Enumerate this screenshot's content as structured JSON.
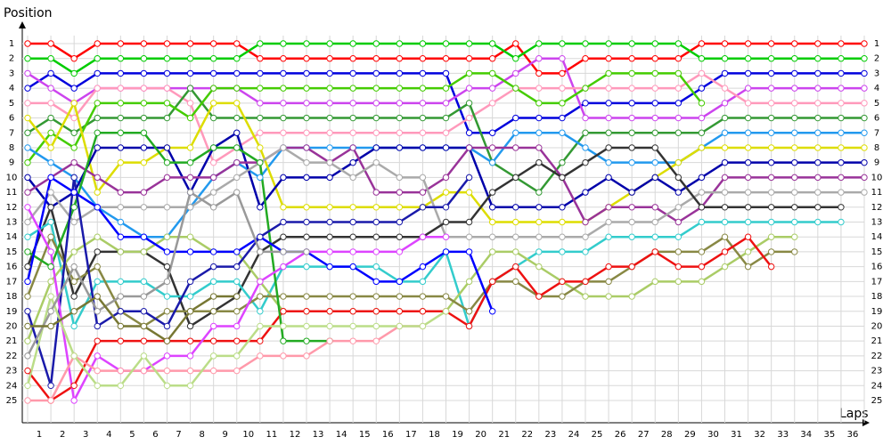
{
  "chart_data": {
    "type": "line",
    "ylabel": "Position",
    "xlabel": "Laps",
    "yreverse": true,
    "grid": true,
    "markers": true,
    "x": [
      0,
      1,
      2,
      3,
      4,
      5,
      6,
      7,
      8,
      9,
      10,
      11,
      12,
      13,
      14,
      15,
      16,
      17,
      18,
      19,
      20,
      21,
      22,
      23,
      24,
      25,
      26,
      27,
      28,
      29,
      30,
      31,
      32,
      33,
      34,
      35,
      36
    ],
    "xlim": [
      0,
      36
    ],
    "xticks": [
      {
        "value": 0.5,
        "label": "1"
      },
      {
        "value": 1.5,
        "label": "2"
      },
      {
        "value": 2.5,
        "label": "3"
      },
      {
        "value": 3.5,
        "label": "4"
      },
      {
        "value": 4.5,
        "label": "5"
      },
      {
        "value": 5.5,
        "label": "6"
      },
      {
        "value": 6.5,
        "label": "7"
      },
      {
        "value": 7.5,
        "label": "8"
      },
      {
        "value": 8.5,
        "label": "9"
      },
      {
        "value": 9.5,
        "label": "10"
      },
      {
        "value": 10.5,
        "label": "11"
      },
      {
        "value": 11.5,
        "label": "12"
      },
      {
        "value": 12.5,
        "label": "13"
      },
      {
        "value": 13.5,
        "label": "14"
      },
      {
        "value": 14.5,
        "label": "15"
      },
      {
        "value": 15.5,
        "label": "16"
      },
      {
        "value": 16.5,
        "label": "17"
      },
      {
        "value": 17.5,
        "label": "18"
      },
      {
        "value": 18.5,
        "label": "19"
      },
      {
        "value": 19.5,
        "label": "20"
      },
      {
        "value": 20.5,
        "label": "21"
      },
      {
        "value": 21.5,
        "label": "22"
      },
      {
        "value": 22.5,
        "label": "23"
      },
      {
        "value": 23.5,
        "label": "24"
      },
      {
        "value": 24.5,
        "label": "25"
      },
      {
        "value": 25.5,
        "label": "26"
      },
      {
        "value": 26.5,
        "label": "27"
      },
      {
        "value": 27.5,
        "label": "28"
      },
      {
        "value": 28.5,
        "label": "29"
      },
      {
        "value": 29.5,
        "label": "30"
      },
      {
        "value": 30.5,
        "label": "31"
      },
      {
        "value": 31.5,
        "label": "32"
      },
      {
        "value": 32.5,
        "label": "33"
      },
      {
        "value": 33.5,
        "label": "34"
      },
      {
        "value": 34.5,
        "label": "35"
      },
      {
        "value": 35.5,
        "label": "36"
      }
    ],
    "ylim": [
      1,
      25
    ],
    "yticks": [
      1,
      2,
      3,
      4,
      5,
      6,
      7,
      8,
      9,
      10,
      11,
      12,
      13,
      14,
      15,
      16,
      17,
      18,
      19,
      20,
      21,
      22,
      23,
      24,
      25
    ],
    "series": [
      {
        "color": "#ff0000",
        "values": [
          1,
          1,
          2,
          1,
          1,
          1,
          1,
          1,
          1,
          1,
          2,
          2,
          2,
          2,
          2,
          2,
          2,
          2,
          2,
          2,
          2,
          1,
          3,
          3,
          2,
          2,
          2,
          2,
          2,
          1,
          1,
          1,
          1,
          1,
          1,
          1,
          1
        ]
      },
      {
        "color": "#00cc00",
        "values": [
          2,
          2,
          3,
          2,
          2,
          2,
          2,
          2,
          2,
          2,
          1,
          1,
          1,
          1,
          1,
          1,
          1,
          1,
          1,
          1,
          1,
          2,
          1,
          1,
          1,
          1,
          1,
          1,
          1,
          2,
          2,
          2,
          2,
          2,
          2,
          2,
          2
        ]
      },
      {
        "color": "#0000dd",
        "values": [
          4,
          3,
          4,
          3,
          3,
          3,
          3,
          3,
          3,
          3,
          3,
          3,
          3,
          3,
          3,
          3,
          3,
          3,
          3,
          7,
          7,
          6,
          6,
          6,
          5,
          5,
          5,
          5,
          5,
          4,
          3,
          3,
          3,
          3,
          3,
          3,
          3
        ]
      },
      {
        "color": "#cc44ee",
        "values": [
          3,
          4,
          5,
          4,
          4,
          4,
          4,
          4,
          4,
          4,
          5,
          5,
          5,
          5,
          5,
          5,
          5,
          5,
          5,
          4,
          4,
          3,
          2,
          2,
          6,
          6,
          6,
          6,
          6,
          6,
          5,
          4,
          4,
          4,
          4,
          4,
          4
        ]
      },
      {
        "color": "#ff99bb",
        "values": [
          5,
          5,
          6,
          4,
          4,
          4,
          4,
          5,
          9,
          8,
          7,
          7,
          7,
          7,
          7,
          7,
          7,
          7,
          7,
          6,
          5,
          4,
          4,
          4,
          4,
          4,
          4,
          4,
          4,
          3,
          4,
          5,
          5,
          5,
          5,
          5,
          5
        ]
      },
      {
        "color": "#339933",
        "values": [
          7,
          6,
          7,
          6,
          6,
          6,
          6,
          4,
          6,
          6,
          6,
          6,
          6,
          6,
          6,
          6,
          6,
          6,
          6,
          5,
          9,
          10,
          11,
          9,
          7,
          7,
          7,
          7,
          7,
          7,
          6,
          6,
          6,
          6,
          6,
          6,
          6
        ]
      },
      {
        "color": "#44cc00",
        "values": [
          9,
          7,
          8,
          5,
          5,
          5,
          5,
          6,
          4,
          4,
          4,
          4,
          4,
          4,
          4,
          4,
          4,
          4,
          4,
          3,
          3,
          4,
          5,
          5,
          4,
          3,
          3,
          3,
          3,
          5,
          null,
          null,
          null,
          null,
          null,
          null,
          null
        ]
      },
      {
        "color": "#2299ee",
        "values": [
          8,
          9,
          10,
          12,
          13,
          14,
          14,
          12,
          10,
          9,
          10,
          8,
          8,
          8,
          8,
          8,
          8,
          8,
          8,
          8,
          9,
          7,
          7,
          7,
          8,
          9,
          9,
          9,
          9,
          8,
          7,
          7,
          7,
          7,
          7,
          7,
          7
        ]
      },
      {
        "color": "#dddd00",
        "values": [
          6,
          8,
          5,
          11,
          9,
          9,
          8,
          8,
          5,
          5,
          8,
          12,
          12,
          12,
          12,
          12,
          12,
          12,
          11,
          11,
          13,
          13,
          13,
          13,
          13,
          12,
          11,
          10,
          9,
          8,
          8,
          8,
          8,
          8,
          8,
          8,
          8
        ]
      },
      {
        "color": "#0000aa",
        "values": [
          10,
          12,
          11,
          8,
          8,
          8,
          8,
          11,
          8,
          7,
          12,
          10,
          10,
          10,
          9,
          8,
          8,
          8,
          8,
          8,
          12,
          12,
          12,
          12,
          11,
          10,
          11,
          10,
          11,
          10,
          9,
          9,
          9,
          9,
          9,
          9,
          9
        ]
      },
      {
        "color": "#993399",
        "values": [
          11,
          10,
          9,
          10,
          11,
          11,
          10,
          10,
          10,
          9,
          9,
          8,
          8,
          9,
          8,
          11,
          11,
          11,
          10,
          8,
          8,
          8,
          8,
          10,
          13,
          12,
          12,
          12,
          13,
          12,
          10,
          10,
          10,
          10,
          10,
          10,
          10
        ]
      },
      {
        "color": "#aaaaaa",
        "values": [
          13,
          11,
          13,
          12,
          12,
          12,
          12,
          12,
          11,
          10,
          9,
          8,
          9,
          9,
          10,
          9,
          10,
          10,
          14,
          14,
          14,
          14,
          14,
          14,
          14,
          13,
          13,
          13,
          12,
          11,
          11,
          11,
          11,
          11,
          11,
          11,
          11
        ]
      },
      {
        "color": "#333333",
        "values": [
          16,
          12,
          18,
          15,
          15,
          15,
          16,
          20,
          19,
          18,
          15,
          14,
          14,
          14,
          14,
          14,
          14,
          14,
          13,
          13,
          11,
          10,
          9,
          10,
          9,
          8,
          8,
          8,
          10,
          12,
          12,
          12,
          12,
          12,
          12,
          12,
          null
        ]
      },
      {
        "color": "#33cccc",
        "values": [
          14,
          13,
          20,
          17,
          17,
          17,
          18,
          18,
          17,
          17,
          19,
          16,
          16,
          16,
          16,
          16,
          17,
          17,
          15,
          20,
          17,
          16,
          15,
          15,
          15,
          14,
          14,
          14,
          14,
          13,
          13,
          13,
          13,
          13,
          13,
          13,
          null
        ]
      },
      {
        "color": "#aacc66",
        "values": [
          21,
          17,
          15,
          14,
          15,
          15,
          14,
          14,
          15,
          15,
          17,
          19,
          19,
          19,
          19,
          19,
          19,
          19,
          19,
          17,
          15,
          15,
          16,
          17,
          18,
          18,
          18,
          17,
          17,
          17,
          16,
          15,
          14,
          14,
          null,
          null,
          null
        ]
      },
      {
        "color": "#888844",
        "values": [
          18,
          14,
          17,
          16,
          19,
          20,
          19,
          19,
          19,
          19,
          18,
          18,
          18,
          18,
          18,
          18,
          18,
          18,
          18,
          19,
          17,
          17,
          18,
          18,
          17,
          17,
          16,
          15,
          15,
          15,
          14,
          16,
          15,
          15,
          null,
          null,
          null
        ]
      },
      {
        "color": "#ee1111",
        "values": [
          23,
          25,
          24,
          21,
          21,
          21,
          21,
          21,
          21,
          21,
          21,
          19,
          19,
          19,
          19,
          19,
          19,
          19,
          19,
          20,
          17,
          16,
          18,
          17,
          17,
          16,
          16,
          15,
          16,
          16,
          15,
          14,
          16,
          null,
          null,
          null,
          null
        ]
      },
      {
        "color": "#22aa22",
        "values": [
          15,
          16,
          12,
          7,
          7,
          7,
          9,
          9,
          8,
          8,
          9,
          21,
          21,
          21,
          null,
          null,
          null,
          null,
          null,
          null,
          null,
          null,
          null,
          null,
          null,
          null,
          null,
          null,
          null,
          null,
          null,
          null,
          null,
          null,
          null,
          null,
          null
        ]
      },
      {
        "color": "#0000ff",
        "values": [
          17,
          10,
          11,
          12,
          14,
          14,
          15,
          15,
          15,
          15,
          14,
          15,
          15,
          16,
          16,
          17,
          17,
          16,
          15,
          15,
          19,
          null,
          null,
          null,
          null,
          null,
          null,
          null,
          null,
          null,
          null,
          null,
          null,
          null,
          null,
          null,
          null
        ]
      },
      {
        "color": "#1a1aaa",
        "values": [
          19,
          24,
          10,
          20,
          19,
          19,
          20,
          17,
          16,
          16,
          14,
          13,
          13,
          13,
          13,
          13,
          13,
          12,
          12,
          10,
          null,
          null,
          null,
          null,
          null,
          null,
          null,
          null,
          null,
          null,
          null,
          null,
          null,
          null,
          null,
          null,
          null
        ]
      },
      {
        "color": "#dd44ff",
        "values": [
          12,
          15,
          25,
          22,
          23,
          23,
          22,
          22,
          20,
          20,
          17,
          16,
          15,
          15,
          15,
          15,
          15,
          14,
          14,
          null,
          null,
          null,
          null,
          null,
          null,
          null,
          null,
          null,
          null,
          null,
          null,
          null,
          null,
          null,
          null,
          null,
          null
        ]
      },
      {
        "color": "#ff99aa",
        "values": [
          25,
          25,
          22,
          23,
          23,
          23,
          23,
          23,
          23,
          23,
          22,
          22,
          22,
          21,
          21,
          21,
          20,
          20,
          null,
          null,
          null,
          null,
          null,
          null,
          null,
          null,
          null,
          null,
          null,
          null,
          null,
          null,
          null,
          null,
          null,
          null,
          null
        ]
      },
      {
        "color": "#bbdd88",
        "values": [
          24,
          18,
          22,
          24,
          24,
          22,
          24,
          24,
          22,
          22,
          20,
          20,
          20,
          20,
          20,
          20,
          20,
          20,
          19,
          null,
          null,
          null,
          null,
          null,
          null,
          null,
          null,
          null,
          null,
          null,
          null,
          null,
          null,
          null,
          null,
          null,
          null
        ]
      },
      {
        "color": "#999999",
        "values": [
          22,
          19,
          16,
          19,
          18,
          18,
          17,
          11,
          12,
          11,
          15,
          15,
          15,
          null,
          null,
          null,
          null,
          null,
          null,
          null,
          null,
          null,
          null,
          null,
          null,
          null,
          null,
          null,
          null,
          null,
          null,
          null,
          null,
          null,
          null,
          null,
          null
        ]
      },
      {
        "color": "#777733",
        "values": [
          20,
          20,
          19,
          18,
          20,
          20,
          21,
          19,
          18,
          18,
          null,
          null,
          null,
          null,
          null,
          null,
          null,
          null,
          null,
          null,
          null,
          null,
          null,
          null,
          null,
          null,
          null,
          null,
          null,
          null,
          null,
          null,
          null,
          null,
          null,
          null,
          null
        ]
      }
    ]
  }
}
